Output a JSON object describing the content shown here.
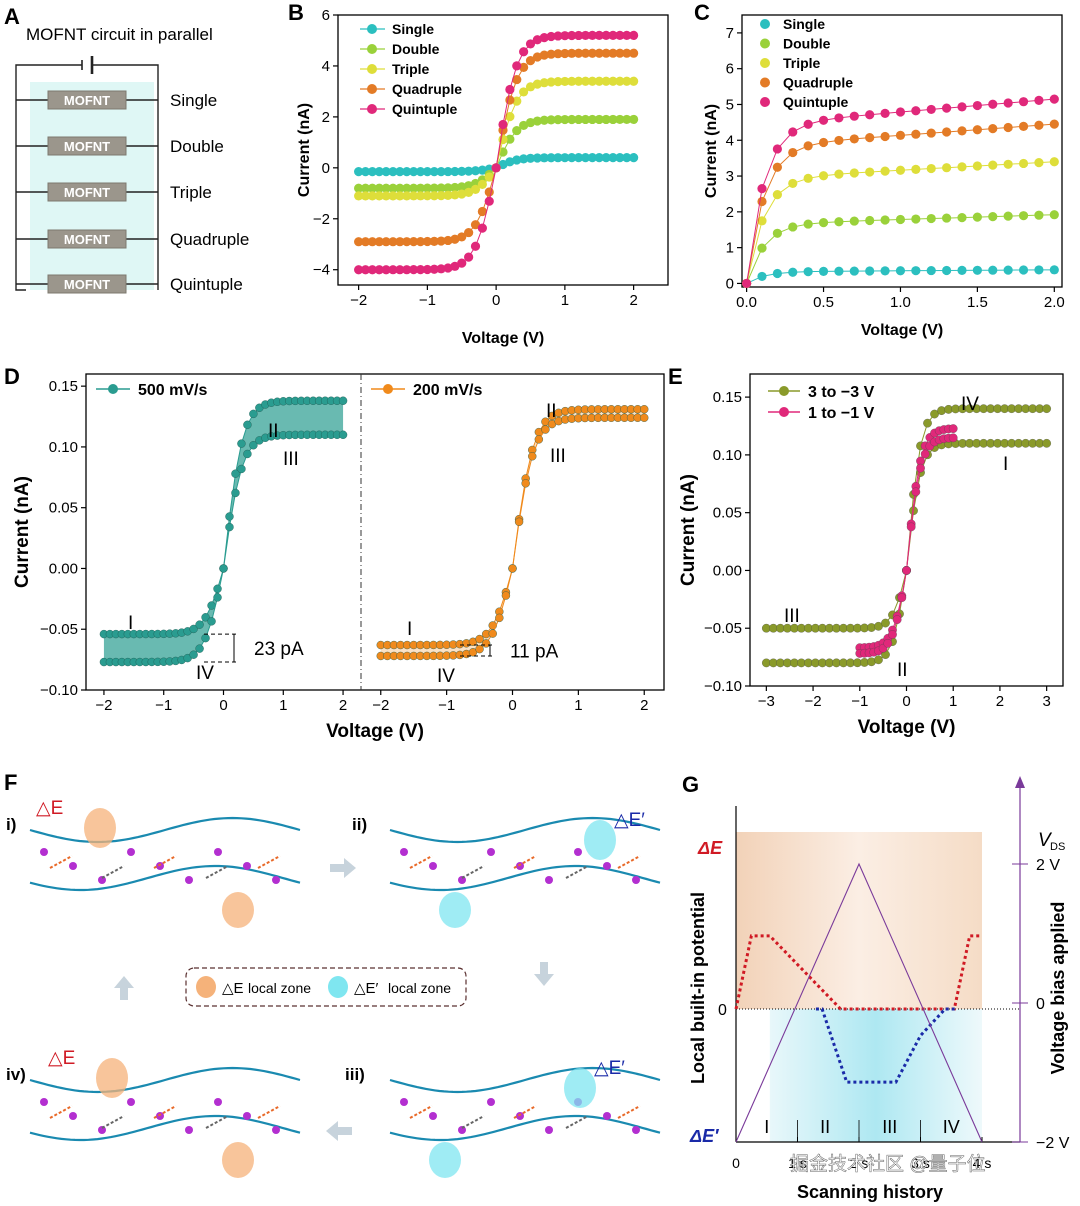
{
  "panels": {
    "A": {
      "letter": "A",
      "title": "MOFNT circuit in parallel",
      "box_label": "MOFNT",
      "rows": [
        "Single",
        "Double",
        "Triple",
        "Quadruple",
        "Quintuple"
      ]
    },
    "B": {
      "letter": "B"
    },
    "C": {
      "letter": "C"
    },
    "D": {
      "letter": "D"
    },
    "E": {
      "letter": "E"
    },
    "F": {
      "letter": "F",
      "steps": [
        "i)",
        "ii)",
        "iii)",
        "iv)"
      ],
      "dE": "△E",
      "dEp": "△E′",
      "legend_dE": "local zone",
      "legend_dEp": "local zone"
    },
    "G": {
      "letter": "G"
    }
  },
  "colors": {
    "single": "#2bbfbf",
    "double": "#9ad13a",
    "triple": "#dede3a",
    "quadruple": "#e37b26",
    "quintuple": "#e0287a",
    "teal": "#2a9c90",
    "orange": "#f08a1c",
    "olive": "#8a9a2a",
    "pink": "#e0287a",
    "dE_red": "#d01a24",
    "dEp_blue": "#1a2aa8",
    "purple": "#7a3a9a",
    "wave": "#1a8ab0"
  },
  "watermark": "掘金技术社区 @量子位",
  "chart_data": [
    {
      "id": "B",
      "type": "scatter",
      "xlabel": "Voltage (V)",
      "ylabel": "Current (nA)",
      "xlim": [
        -2.3,
        2.5
      ],
      "ylim": [
        -4.6,
        6
      ],
      "xticks": [
        -2,
        -1,
        0,
        1,
        2
      ],
      "yticks": [
        -4,
        -2,
        0,
        2,
        4,
        6
      ],
      "legend_position": "top-left",
      "series": [
        {
          "name": "Single",
          "sat_pos": 0.4,
          "sat_neg": -0.15,
          "color": "#2bbfbf"
        },
        {
          "name": "Double",
          "sat_pos": 1.9,
          "sat_neg": -0.8,
          "color": "#9ad13a"
        },
        {
          "name": "Triple",
          "sat_pos": 3.4,
          "sat_neg": -1.1,
          "color": "#dede3a"
        },
        {
          "name": "Quadruple",
          "sat_pos": 4.5,
          "sat_neg": -2.9,
          "color": "#e37b26"
        },
        {
          "name": "Quintuple",
          "sat_pos": 5.2,
          "sat_neg": -4.0,
          "color": "#e0287a"
        }
      ]
    },
    {
      "id": "C",
      "type": "scatter",
      "xlabel": "Voltage (V)",
      "ylabel": "Current (nA)",
      "xlim": [
        -0.03,
        2.05
      ],
      "ylim": [
        -0.1,
        7.5
      ],
      "xticks": [
        0.0,
        0.5,
        1.0,
        1.5,
        2.0
      ],
      "xticklabels": [
        "0.0",
        "0.5",
        "1.0",
        "1.5",
        "2.0"
      ],
      "yticks": [
        0,
        1,
        2,
        3,
        4,
        5,
        6,
        7
      ],
      "legend_position": "top-left",
      "series": [
        {
          "name": "Single",
          "sat_pos": 0.38,
          "color": "#2bbfbf"
        },
        {
          "name": "Double",
          "sat_pos": 1.92,
          "color": "#9ad13a"
        },
        {
          "name": "Triple",
          "sat_pos": 3.4,
          "color": "#dede3a"
        },
        {
          "name": "Quadruple",
          "sat_pos": 4.45,
          "color": "#e37b26"
        },
        {
          "name": "Quintuple",
          "sat_pos": 5.15,
          "color": "#e0287a"
        }
      ]
    },
    {
      "id": "D",
      "type": "line",
      "xlabel": "Voltage (V)",
      "ylabel": "Current (nA)",
      "ylim": [
        -0.1,
        0.16
      ],
      "yticks": [
        -0.1,
        -0.05,
        0.0,
        0.05,
        0.1,
        0.15
      ],
      "yticklabels": [
        "−0.10",
        "−0.05",
        "0.00",
        "0.05",
        "0.10",
        "0.15"
      ],
      "subplots": [
        {
          "name": "500 mV/s",
          "xlim": [
            -2.3,
            2.3
          ],
          "xticks": [
            -2,
            -1,
            0,
            1,
            2
          ],
          "upper_pos": 0.138,
          "lower_pos": 0.11,
          "upper_neg": -0.054,
          "lower_neg": -0.077,
          "gap_label": "23 pA",
          "labels": [
            "I",
            "II",
            "III",
            "IV"
          ],
          "color": "#2a9c90"
        },
        {
          "name": "200 mV/s",
          "xlim": [
            -2.3,
            2.3
          ],
          "xticks": [
            -2,
            -1,
            0,
            1,
            2
          ],
          "upper_pos": 0.131,
          "lower_pos": 0.124,
          "upper_neg": -0.063,
          "lower_neg": -0.072,
          "gap_label": "11 pA",
          "labels": [
            "I",
            "II",
            "III",
            "IV"
          ],
          "color": "#f08a1c"
        }
      ]
    },
    {
      "id": "E",
      "type": "line",
      "xlabel": "Voltage (V)",
      "ylabel": "Current (nA)",
      "xlim": [
        -3.35,
        3.35
      ],
      "ylim": [
        -0.1,
        0.17
      ],
      "xticks": [
        -3,
        -2,
        -1,
        0,
        1,
        2,
        3
      ],
      "yticks": [
        -0.1,
        -0.05,
        0.0,
        0.05,
        0.1,
        0.15
      ],
      "yticklabels": [
        "−0.10",
        "−0.05",
        "0.00",
        "0.05",
        "0.10",
        "0.15"
      ],
      "labels": [
        "I",
        "II",
        "III",
        "IV"
      ],
      "series": [
        {
          "name": "3 to −3 V",
          "vmax": 3,
          "upper_pos": 0.14,
          "lower_pos": 0.11,
          "upper_neg": -0.05,
          "lower_neg": -0.08,
          "color": "#8a9a2a"
        },
        {
          "name": "1 to −1 V",
          "vmax": 1,
          "upper_pos": 0.123,
          "lower_pos": 0.115,
          "upper_neg": -0.067,
          "lower_neg": -0.072,
          "color": "#e0287a"
        }
      ]
    },
    {
      "id": "G",
      "type": "line",
      "xlabel": "Scanning history",
      "ylabel_left": "Local built-in potential",
      "ylabel_right": "Voltage bias applied",
      "right_axis_title": "V",
      "right_axis_sub": "DS",
      "left_top_label": "ΔE",
      "left_bottom_label": "ΔE′",
      "left_zero": "0",
      "right_ticks": [
        "2 V",
        "0",
        "−2 V"
      ],
      "x_ticks": [
        "0",
        "1 s",
        "2 s",
        "3 s",
        "4 s"
      ],
      "phases": [
        "I",
        "II",
        "III",
        "IV"
      ],
      "series": [
        {
          "name": "ΔE",
          "color": "#d01a24",
          "t": [
            0,
            0.25,
            0.55,
            1.7,
            2.5,
            3.55,
            3.8,
            4.0
          ],
          "v": [
            0,
            0.55,
            0.55,
            0,
            0,
            0,
            0.55,
            0.55
          ]
        },
        {
          "name": "ΔE′",
          "color": "#1a2aa8",
          "t": [
            1.3,
            1.4,
            1.8,
            2.6,
            3.0,
            3.4,
            3.6
          ],
          "v": [
            0,
            0,
            -0.55,
            -0.55,
            -0.2,
            0,
            0
          ]
        },
        {
          "name": "bias",
          "color": "#7a3a9a",
          "t": [
            0,
            2,
            4
          ],
          "v": [
            -2,
            2,
            -2
          ]
        }
      ]
    }
  ]
}
